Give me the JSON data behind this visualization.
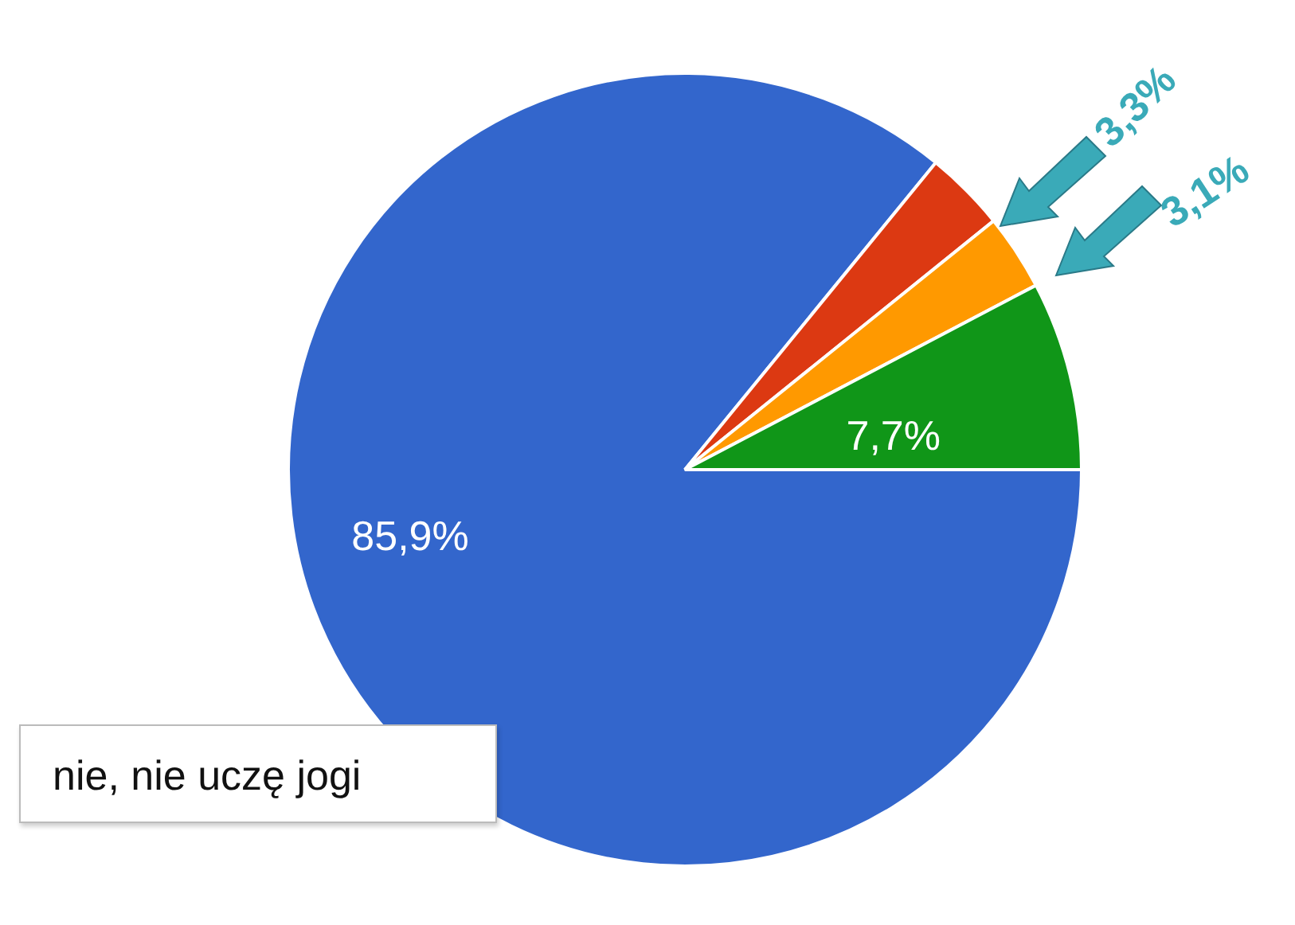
{
  "chart_data": {
    "type": "pie",
    "categories": [
      "nie, nie uczę jogi",
      null,
      null,
      null
    ],
    "values": [
      85.9,
      3.3,
      3.1,
      7.7
    ],
    "colors": [
      "#3366cc",
      "#dc3912",
      "#ff9900",
      "#109618"
    ],
    "value_labels": [
      "85,9%",
      "3,3%",
      "3,1%",
      "7,7%"
    ],
    "legend": false
  }
}
